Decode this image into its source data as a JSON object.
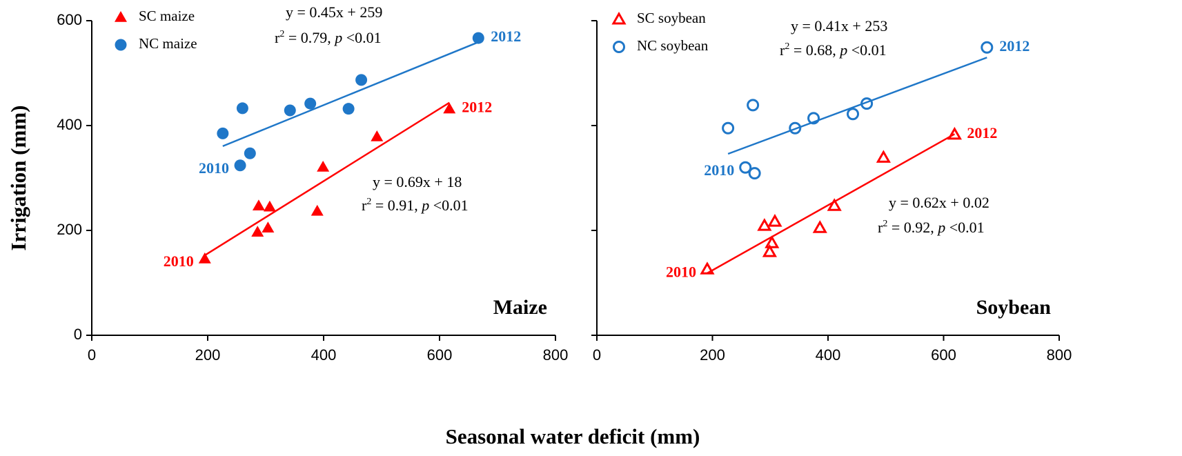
{
  "figure": {
    "xlabel": "Seasonal water deficit (mm)",
    "ylabel": "Irrigation (mm)"
  },
  "chart_data": [
    {
      "type": "scatter",
      "title": "Maize",
      "xlim": [
        0,
        800
      ],
      "ylim": [
        0,
        600
      ],
      "xticks": [
        0,
        200,
        400,
        600,
        800
      ],
      "yticks": [
        0,
        200,
        400,
        600
      ],
      "ytick_labels": true,
      "series": [
        {
          "name": "SC maize",
          "color": "#ff0000",
          "marker": "triangle",
          "filled": true,
          "x": [
            195,
            288,
            286,
            307,
            304,
            389,
            399,
            492,
            617
          ],
          "values": [
            146,
            247,
            197,
            245,
            205,
            237,
            321,
            379,
            432
          ],
          "point_labels": [
            "2010",
            null,
            null,
            null,
            null,
            null,
            null,
            null,
            "2012"
          ],
          "fit": {
            "slope": 0.69,
            "intercept": 18
          },
          "eq": "y = 0.69x + 18",
          "r2": [
            "r",
            "2",
            " = 0.91, ",
            "p",
            " <0.01"
          ]
        },
        {
          "name": "NC maize",
          "color": "#1f77c8",
          "marker": "circle",
          "filled": true,
          "x": [
            256,
            226,
            260,
            273,
            342,
            377,
            443,
            465,
            667
          ],
          "values": [
            324,
            385,
            433,
            347,
            429,
            442,
            432,
            487,
            567
          ],
          "point_labels": [
            "2010",
            null,
            null,
            null,
            null,
            null,
            null,
            null,
            "2012"
          ],
          "fit": {
            "slope": 0.45,
            "intercept": 259
          },
          "eq": "y = 0.45x + 259",
          "r2": [
            "r",
            "2",
            " = 0.79, ",
            "p",
            " <0.01"
          ]
        }
      ]
    },
    {
      "type": "scatter",
      "title": "Soybean",
      "xlim": [
        0,
        800
      ],
      "ylim": [
        0,
        600
      ],
      "xticks": [
        0,
        200,
        400,
        600,
        800
      ],
      "yticks": [
        0,
        200,
        400,
        600
      ],
      "ytick_labels": false,
      "series": [
        {
          "name": "SC soybean",
          "color": "#ff0000",
          "marker": "triangle",
          "filled": false,
          "x": [
            191,
            290,
            308,
            303,
            299,
            386,
            411,
            496,
            619
          ],
          "values": [
            126,
            209,
            217,
            176,
            159,
            205,
            247,
            339,
            383
          ],
          "point_labels": [
            "2010",
            null,
            null,
            null,
            null,
            null,
            null,
            null,
            "2012"
          ],
          "fit": {
            "slope": 0.62,
            "intercept": 0.02
          },
          "eq": "y = 0.62x + 0.02",
          "r2": [
            "r",
            "2",
            " = 0.92, ",
            "p",
            " <0.01"
          ]
        },
        {
          "name": "NC soybean",
          "color": "#1f77c8",
          "marker": "circle",
          "filled": false,
          "x": [
            257,
            227,
            273,
            270,
            343,
            375,
            443,
            467,
            675
          ],
          "values": [
            320,
            395,
            309,
            439,
            395,
            414,
            422,
            442,
            549
          ],
          "point_labels": [
            "2010",
            null,
            null,
            null,
            null,
            null,
            null,
            null,
            "2012"
          ],
          "fit": {
            "slope": 0.41,
            "intercept": 253
          },
          "eq": "y = 0.41x + 253",
          "r2": [
            "r",
            "2",
            " = 0.68, ",
            "p",
            " <0.01"
          ]
        }
      ]
    }
  ]
}
